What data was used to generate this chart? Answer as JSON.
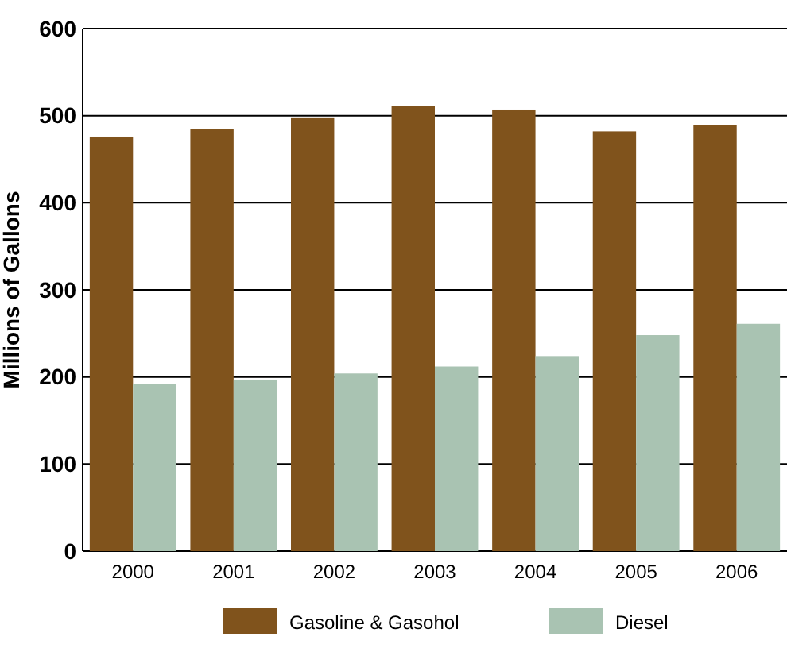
{
  "chart_data": {
    "type": "bar",
    "ylabel": "Millions of Gallons",
    "categories": [
      "2000",
      "2001",
      "2002",
      "2003",
      "2004",
      "2005",
      "2006"
    ],
    "series": [
      {
        "name": "Gasoline & Gasohol",
        "color": "#80531c",
        "values": [
          476,
          485,
          498,
          511,
          507,
          482,
          489
        ]
      },
      {
        "name": "Diesel",
        "color": "#a9c3b2",
        "values": [
          192,
          197,
          204,
          212,
          224,
          248,
          261
        ]
      }
    ],
    "ylim": [
      0,
      600
    ],
    "yticks": [
      0,
      100,
      200,
      300,
      400,
      500,
      600
    ],
    "grid": "y",
    "legend": "bottom"
  }
}
